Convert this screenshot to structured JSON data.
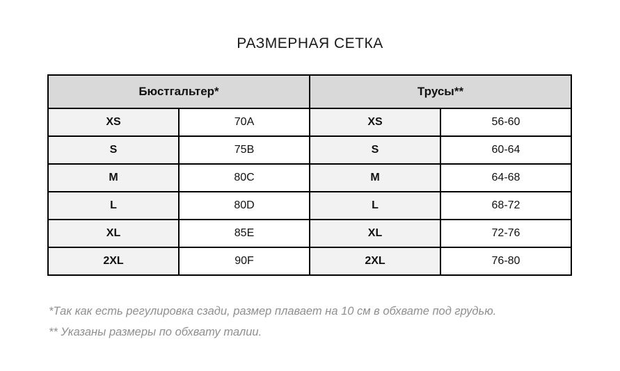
{
  "title": "РАЗМЕРНАЯ СЕТКА",
  "table": {
    "header": {
      "bra": "Бюстгальтер*",
      "panties": "Трусы**"
    },
    "rows": [
      {
        "bra_size": "XS",
        "bra_value": "70A",
        "panties_size": "XS",
        "panties_value": "56-60"
      },
      {
        "bra_size": "S",
        "bra_value": "75B",
        "panties_size": "S",
        "panties_value": "60-64"
      },
      {
        "bra_size": "M",
        "bra_value": "80C",
        "panties_size": "M",
        "panties_value": "64-68"
      },
      {
        "bra_size": "L",
        "bra_value": "80D",
        "panties_size": "L",
        "panties_value": "68-72"
      },
      {
        "bra_size": "XL",
        "bra_value": "85E",
        "panties_size": "XL",
        "panties_value": "72-76"
      },
      {
        "bra_size": "2XL",
        "bra_value": "90F",
        "panties_size": "2XL",
        "panties_value": "76-80"
      }
    ]
  },
  "footnotes": {
    "line1": "*Так как есть регулировка сзади, размер плавает на 10 см в обхвате под грудью.",
    "line2": "** Указаны размеры по обхвату талии."
  },
  "colors": {
    "header_bg": "#D9D9D9",
    "size_cell_bg": "#F2F2F2",
    "border": "#000000",
    "footnote_text": "#8F8F8F"
  }
}
